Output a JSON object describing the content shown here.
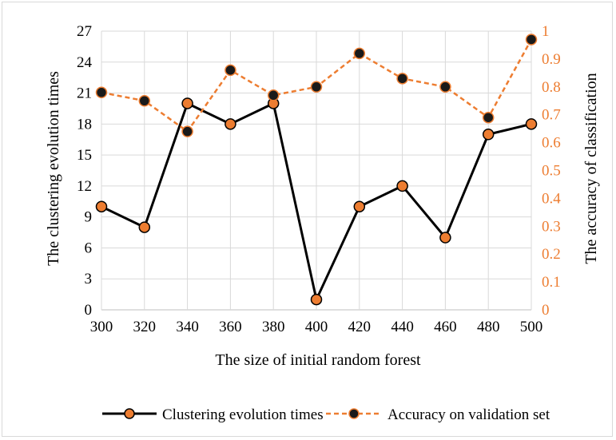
{
  "chart_data": {
    "type": "line",
    "x": [
      300,
      320,
      340,
      360,
      380,
      400,
      420,
      440,
      460,
      480,
      500
    ],
    "xlabel": "The size of initial random forest",
    "ylabel_left": "The clustering evolution times",
    "ylabel_right": "The accuracy of classification",
    "y_left_lim": [
      0,
      27
    ],
    "y_left_ticks": [
      0,
      3,
      6,
      9,
      12,
      15,
      18,
      21,
      24,
      27
    ],
    "y_right_lim": [
      0,
      1
    ],
    "y_right_ticks": [
      "0",
      "0.1",
      "0.2",
      "0.3",
      "0.4",
      "0.5",
      "0.6",
      "0.7",
      "0.8",
      "0.9",
      "1"
    ],
    "grid": true,
    "legend_position": "bottom",
    "series": [
      {
        "name": "Clustering evolution times",
        "axis": "left",
        "line_color": "#000000",
        "marker_color": "#ED7D31",
        "line_style": "solid",
        "values": [
          10,
          8,
          20,
          18,
          20,
          1,
          10,
          12,
          7,
          17,
          18
        ]
      },
      {
        "name": "Accuracy on validation set",
        "axis": "right",
        "line_color": "#ED7D31",
        "marker_color": "#1a1a1a",
        "line_style": "dashed",
        "values": [
          0.78,
          0.75,
          0.64,
          0.86,
          0.77,
          0.8,
          0.92,
          0.83,
          0.8,
          0.69,
          0.97
        ]
      }
    ]
  }
}
